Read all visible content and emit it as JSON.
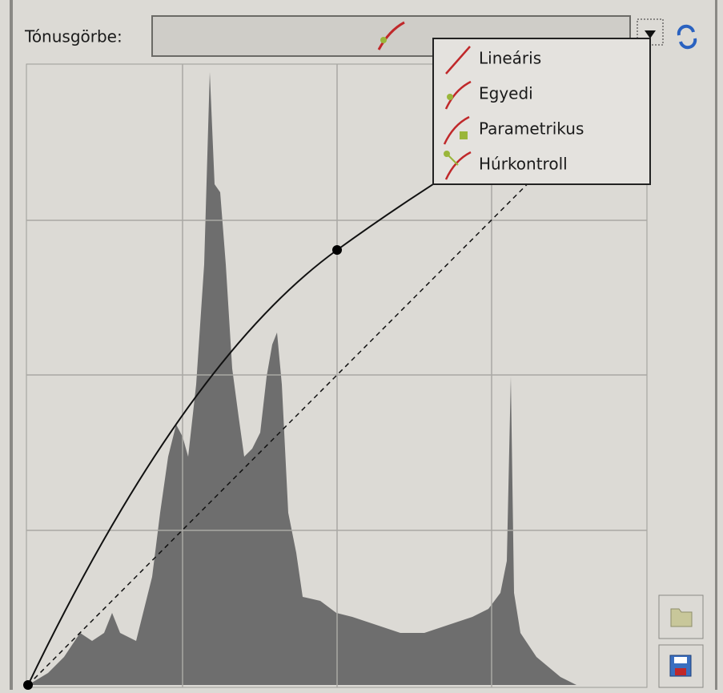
{
  "label": "Tónusgörbe:",
  "menu": {
    "items": [
      "Lineáris",
      "Egyedi",
      "Parametrikus",
      "Húrkontroll"
    ]
  }
}
